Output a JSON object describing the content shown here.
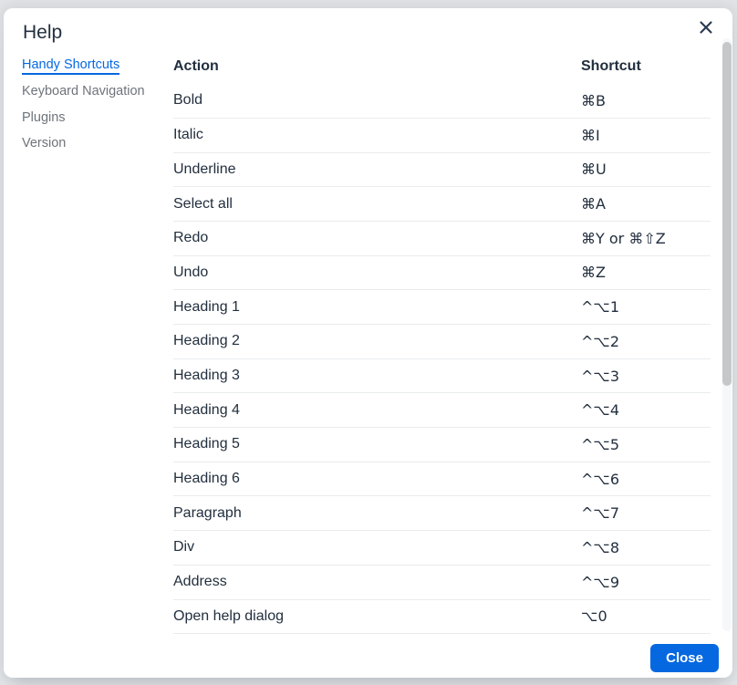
{
  "dialog": {
    "title": "Help",
    "header": {
      "close_button": {
        "icon": "close-icon"
      }
    },
    "sidebar": {
      "items": [
        {
          "label": "Handy Shortcuts",
          "active": true
        },
        {
          "label": "Keyboard Navigation",
          "active": false
        },
        {
          "label": "Plugins",
          "active": false
        },
        {
          "label": "Version",
          "active": false
        }
      ]
    },
    "table": {
      "headers": [
        "Action",
        "Shortcut"
      ],
      "rows": [
        {
          "action": "Bold",
          "shortcut": "⌘B"
        },
        {
          "action": "Italic",
          "shortcut": "⌘I"
        },
        {
          "action": "Underline",
          "shortcut": "⌘U"
        },
        {
          "action": "Select all",
          "shortcut": "⌘A"
        },
        {
          "action": "Redo",
          "shortcut": "⌘Y or ⌘⇧Z"
        },
        {
          "action": "Undo",
          "shortcut": "⌘Z"
        },
        {
          "action": "Heading 1",
          "shortcut": "^⌥1"
        },
        {
          "action": "Heading 2",
          "shortcut": "^⌥2"
        },
        {
          "action": "Heading 3",
          "shortcut": "^⌥3"
        },
        {
          "action": "Heading 4",
          "shortcut": "^⌥4"
        },
        {
          "action": "Heading 5",
          "shortcut": "^⌥5"
        },
        {
          "action": "Heading 6",
          "shortcut": "^⌥6"
        },
        {
          "action": "Paragraph",
          "shortcut": "^⌥7"
        },
        {
          "action": "Div",
          "shortcut": "^⌥8"
        },
        {
          "action": "Address",
          "shortcut": "^⌥9"
        },
        {
          "action": "Open help dialog",
          "shortcut": "⌥0"
        }
      ]
    },
    "footer": {
      "close_label": "Close"
    },
    "colors": {
      "accent": "#0668e0",
      "text": "#222f3e",
      "muted_text": "#6e747b",
      "row_border": "#e9ebed",
      "scrollbar_thumb": "#c5c7c9",
      "backdrop": "#e1e3e6",
      "dialog_background": "#ffffff"
    }
  }
}
